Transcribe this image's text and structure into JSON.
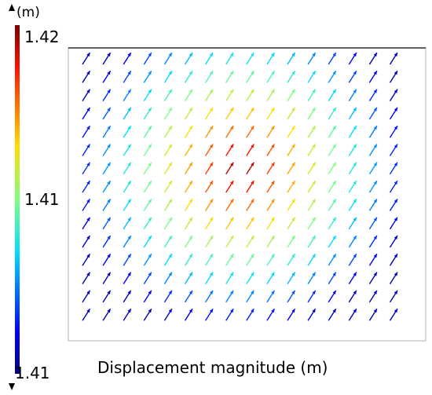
{
  "chart_data": {
    "type": "quiver",
    "title": "",
    "caption": "Displacement magnitude (m)",
    "colorbar": {
      "unit_label": "(m)",
      "max_label": "1.42",
      "mid_label": "1.41",
      "min_label": "1.41",
      "colormap": "jet",
      "range": [
        1.41,
        1.42
      ]
    },
    "grid": {
      "cols": 16,
      "rows": 15
    },
    "field": {
      "pattern": "radial-peak",
      "peak_col": 7.5,
      "peak_row": 6,
      "peak_norm": 1.0,
      "edge_norm": 0.0,
      "arrow_direction": "up-right"
    }
  }
}
